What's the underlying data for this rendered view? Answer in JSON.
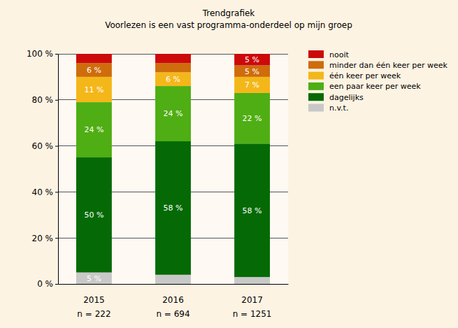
{
  "chart_data": {
    "type": "bar",
    "title": "Trendgrafiek",
    "subtitle": "Voorlezen is een vast programma-onderdeel op mijn groep",
    "categories": [
      "2015",
      "2016",
      "2017"
    ],
    "category_sublabels": [
      "n = 222",
      "n = 694",
      "n = 1251"
    ],
    "stacked": true,
    "data_labels": true,
    "grid": true,
    "legend": "right",
    "ylim": [
      0,
      100
    ],
    "yticks": [
      {
        "value": 0,
        "label": "0 %"
      },
      {
        "value": 20,
        "label": "20 %"
      },
      {
        "value": 40,
        "label": "40 %"
      },
      {
        "value": 60,
        "label": "60 %"
      },
      {
        "value": 80,
        "label": "80 %"
      },
      {
        "value": 100,
        "label": "100 %"
      }
    ],
    "series": [
      {
        "name": "n.v.t.",
        "color": "#c8c8c8",
        "values": [
          5,
          4,
          3
        ],
        "value_labels": [
          "5 %",
          null,
          null
        ]
      },
      {
        "name": "dagelijks",
        "color": "#056a05",
        "values": [
          50,
          58,
          58
        ],
        "value_labels": [
          "50 %",
          "58 %",
          "58 %"
        ]
      },
      {
        "name": "een paar keer per week",
        "color": "#4fae13",
        "values": [
          24,
          24,
          22
        ],
        "value_labels": [
          "24 %",
          "24 %",
          "22 %"
        ]
      },
      {
        "name": "één keer per week",
        "color": "#f4b71a",
        "values": [
          11,
          6,
          7
        ],
        "value_labels": [
          "11 %",
          "6 %",
          "7 %"
        ]
      },
      {
        "name": "minder dan één keer per week",
        "color": "#cf6c0c",
        "values": [
          6,
          4,
          5
        ],
        "value_labels": [
          "6 %",
          null,
          "5 %"
        ]
      },
      {
        "name": "nooit",
        "color": "#cc0a0a",
        "values": [
          4,
          4,
          5
        ],
        "value_labels": [
          null,
          null,
          "5 %"
        ]
      }
    ]
  }
}
